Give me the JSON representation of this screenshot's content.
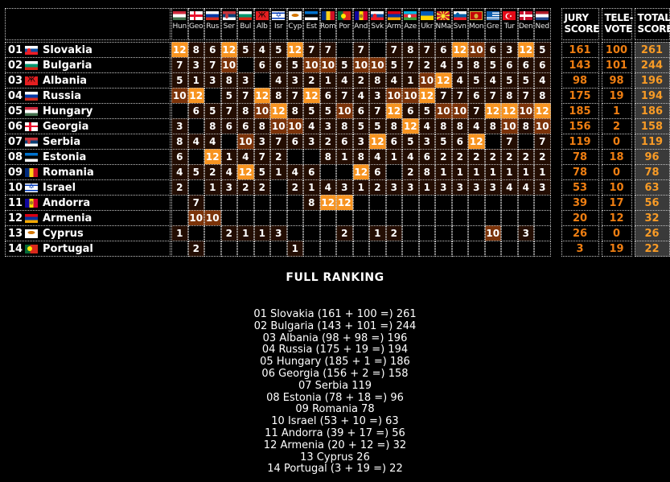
{
  "chart_data": {
    "type": "table",
    "description": "Eurovision-style jury voting scoreboard",
    "voting_columns": [
      {
        "code": "Hun",
        "flag": "hungary"
      },
      {
        "code": "Geo",
        "flag": "georgia"
      },
      {
        "code": "Rus",
        "flag": "russia"
      },
      {
        "code": "Ser",
        "flag": "serbia"
      },
      {
        "code": "Bul",
        "flag": "bulgaria"
      },
      {
        "code": "Alb",
        "flag": "albania"
      },
      {
        "code": "Isr",
        "flag": "israel"
      },
      {
        "code": "Cyp",
        "flag": "cyprus"
      },
      {
        "code": "Est",
        "flag": "estonia"
      },
      {
        "code": "Rom",
        "flag": "romania"
      },
      {
        "code": "Por",
        "flag": "portugal"
      },
      {
        "code": "And",
        "flag": "andorra"
      },
      {
        "code": "Svk",
        "flag": "slovakia"
      },
      {
        "code": "Arm",
        "flag": "armenia"
      },
      {
        "code": "Aze",
        "flag": "azerbaijan"
      },
      {
        "code": "Ukr",
        "flag": "ukraine"
      },
      {
        "code": "NMa",
        "flag": "northmacedonia"
      },
      {
        "code": "Svn",
        "flag": "slovenia"
      },
      {
        "code": "Mon",
        "flag": "montenegro"
      },
      {
        "code": "Gre",
        "flag": "greece"
      },
      {
        "code": "Tur",
        "flag": "turkey"
      },
      {
        "code": "Den",
        "flag": "denmark"
      },
      {
        "code": "Ned",
        "flag": "netherlands"
      }
    ],
    "rows": [
      {
        "pos": "01",
        "country": "Slovakia",
        "flag": "slovakia",
        "votes": [
          12,
          8,
          6,
          12,
          5,
          4,
          5,
          12,
          7,
          7,
          null,
          7,
          null,
          7,
          8,
          7,
          6,
          12,
          10,
          6,
          3,
          12,
          5
        ],
        "jury": 161,
        "tele": 100,
        "total": 261
      },
      {
        "pos": "02",
        "country": "Bulgaria",
        "flag": "bulgaria",
        "votes": [
          7,
          3,
          7,
          10,
          null,
          6,
          6,
          5,
          10,
          10,
          5,
          10,
          10,
          5,
          7,
          2,
          4,
          5,
          8,
          5,
          6,
          6,
          6
        ],
        "jury": 143,
        "tele": 101,
        "total": 244
      },
      {
        "pos": "03",
        "country": "Albania",
        "flag": "albania",
        "votes": [
          5,
          1,
          3,
          8,
          3,
          null,
          4,
          3,
          2,
          1,
          4,
          2,
          8,
          4,
          1,
          10,
          12,
          4,
          5,
          4,
          5,
          5,
          4
        ],
        "jury": 98,
        "tele": 98,
        "total": 196
      },
      {
        "pos": "04",
        "country": "Russia",
        "flag": "russia",
        "votes": [
          10,
          12,
          null,
          5,
          7,
          12,
          8,
          7,
          12,
          6,
          7,
          4,
          3,
          10,
          10,
          12,
          7,
          7,
          6,
          7,
          8,
          7,
          8
        ],
        "jury": 175,
        "tele": 19,
        "total": 194
      },
      {
        "pos": "05",
        "country": "Hungary",
        "flag": "hungary",
        "votes": [
          null,
          6,
          5,
          7,
          8,
          10,
          12,
          8,
          5,
          5,
          10,
          6,
          7,
          12,
          6,
          5,
          10,
          10,
          7,
          12,
          12,
          10,
          12
        ],
        "jury": 185,
        "tele": 1,
        "total": 186
      },
      {
        "pos": "06",
        "country": "Georgia",
        "flag": "georgia",
        "votes": [
          3,
          null,
          8,
          6,
          6,
          8,
          10,
          10,
          4,
          3,
          8,
          5,
          5,
          8,
          12,
          4,
          8,
          8,
          4,
          8,
          10,
          8,
          10
        ],
        "jury": 156,
        "tele": 2,
        "total": 158
      },
      {
        "pos": "07",
        "country": "Serbia",
        "flag": "serbia",
        "votes": [
          8,
          4,
          4,
          null,
          10,
          3,
          7,
          6,
          3,
          2,
          6,
          3,
          12,
          6,
          5,
          3,
          5,
          6,
          12,
          null,
          7,
          null,
          7
        ],
        "jury": 119,
        "tele": 0,
        "total": 119
      },
      {
        "pos": "08",
        "country": "Estonia",
        "flag": "estonia",
        "votes": [
          6,
          null,
          12,
          1,
          4,
          7,
          2,
          null,
          null,
          8,
          1,
          8,
          4,
          1,
          4,
          6,
          2,
          2,
          2,
          2,
          2,
          2,
          2
        ],
        "jury": 78,
        "tele": 18,
        "total": 96
      },
      {
        "pos": "09",
        "country": "Romania",
        "flag": "romania",
        "votes": [
          4,
          5,
          2,
          4,
          12,
          5,
          1,
          4,
          6,
          null,
          null,
          12,
          6,
          null,
          2,
          8,
          1,
          1,
          1,
          1,
          1,
          1,
          1
        ],
        "jury": 78,
        "tele": 0,
        "total": 78
      },
      {
        "pos": "10",
        "country": "Israel",
        "flag": "israel",
        "votes": [
          2,
          null,
          1,
          3,
          2,
          2,
          null,
          2,
          1,
          4,
          3,
          1,
          2,
          3,
          3,
          1,
          3,
          3,
          3,
          3,
          4,
          4,
          3
        ],
        "jury": 53,
        "tele": 10,
        "total": 63
      },
      {
        "pos": "11",
        "country": "Andorra",
        "flag": "andorra",
        "votes": [
          null,
          7,
          null,
          null,
          null,
          null,
          null,
          null,
          8,
          12,
          12,
          null,
          null,
          null,
          null,
          null,
          null,
          null,
          null,
          null,
          null,
          null,
          null
        ],
        "jury": 39,
        "tele": 17,
        "total": 56
      },
      {
        "pos": "12",
        "country": "Armenia",
        "flag": "armenia",
        "votes": [
          null,
          10,
          10,
          null,
          null,
          null,
          null,
          null,
          null,
          null,
          null,
          null,
          null,
          null,
          null,
          null,
          null,
          null,
          null,
          null,
          null,
          null,
          null
        ],
        "jury": 20,
        "tele": 12,
        "total": 32
      },
      {
        "pos": "13",
        "country": "Cyprus",
        "flag": "cyprus",
        "votes": [
          1,
          null,
          null,
          2,
          1,
          1,
          3,
          null,
          null,
          null,
          2,
          null,
          1,
          2,
          null,
          null,
          null,
          null,
          null,
          10,
          null,
          3,
          null
        ],
        "jury": 26,
        "tele": 0,
        "total": 26
      },
      {
        "pos": "14",
        "country": "Portugal",
        "flag": "portugal",
        "votes": [
          null,
          2,
          null,
          null,
          null,
          null,
          null,
          1,
          null,
          null,
          null,
          null,
          null,
          null,
          null,
          null,
          null,
          null,
          null,
          null,
          null,
          null,
          null
        ],
        "jury": 3,
        "tele": 19,
        "total": 22
      }
    ]
  },
  "score_headers": {
    "jury_line1": "JURY",
    "jury_line2": "SCORE",
    "tele_line1": "TELE-",
    "tele_line2": "VOTE",
    "total_line1": "TOTAL",
    "total_line2": "SCORE"
  },
  "ranking": {
    "title": "FULL RANKING",
    "lines": [
      "01 Slovakia (161 + 100 =) 261",
      "02 Bulgaria (143 + 101 =) 244",
      "03 Albania (98 + 98 =) 196",
      "04 Russia (175 + 19 =) 194",
      "05 Hungary (185 + 1 =) 186",
      "06 Georgia (156 + 2 =) 158",
      "07 Serbia 119",
      "08 Estonia (78 + 18 =) 96",
      "09 Romania 78",
      "10 Israel (53 + 10 =) 63",
      "11 Andorra (39 + 17 =) 56",
      "12 Armenia (20 + 12 =) 32",
      "13 Cyprus 26",
      "14 Portugal (3 + 19 =) 22"
    ]
  },
  "colors": {
    "background": "#000000",
    "points12_cell": "#f79421",
    "points10_cell": "#7b3309",
    "points_cell": "#230d02",
    "cell_border": "#c4c4c4",
    "score_text": "#ee7e12",
    "total_text": "#f89b26",
    "total_cell_bg": "#3a3a3a",
    "text": "#ffffff"
  },
  "flags": {
    "hungary": {
      "t": "h",
      "s": [
        "#cd2a3e",
        "#ffffff",
        "#436f4d"
      ]
    },
    "georgia": {
      "t": "cross",
      "bg": "#ffffff",
      "c": "#e8112d"
    },
    "russia": {
      "t": "h",
      "s": [
        "#ffffff",
        "#0039a6",
        "#d52b1e"
      ]
    },
    "serbia": {
      "t": "h",
      "s": [
        "#c6363c",
        "#0c4076",
        "#ffffff"
      ],
      "o": [
        {
          "k": "disc",
          "c": "#c6363c",
          "x": "34%",
          "y": "50%",
          "w": 4,
          "h": 6
        }
      ]
    },
    "bulgaria": {
      "t": "h",
      "s": [
        "#ffffff",
        "#00966e",
        "#d62612"
      ]
    },
    "albania": {
      "t": "solid",
      "bg": "#e41e20",
      "o": [
        {
          "k": "ch",
          "c": "#000000",
          "ch": "Ж"
        }
      ]
    },
    "israel": {
      "t": "h",
      "s": [
        "#ffffff",
        "#0038b8",
        "#ffffff",
        "#0038b8",
        "#ffffff"
      ],
      "f": [
        0.12,
        0.14,
        0.48,
        0.14,
        0.12
      ],
      "o": [
        {
          "k": "ch",
          "c": "#0038b8",
          "ch": "✡"
        }
      ]
    },
    "cyprus": {
      "t": "solid",
      "bg": "#ffffff",
      "o": [
        {
          "k": "disc",
          "c": "#d47600",
          "x": "50%",
          "y": "42%",
          "w": 9,
          "h": 4
        }
      ]
    },
    "estonia": {
      "t": "h",
      "s": [
        "#0072ce",
        "#000000",
        "#ffffff"
      ]
    },
    "romania": {
      "t": "v",
      "s": [
        "#002b7f",
        "#fcd116",
        "#ce1126"
      ]
    },
    "portugal": {
      "t": "v",
      "s": [
        "#046a38",
        "#da291c"
      ],
      "f": [
        0.4,
        0.6
      ],
      "o": [
        {
          "k": "disc",
          "c": "#ffe900",
          "x": "40%",
          "y": "50%",
          "w": 6,
          "h": 6
        }
      ]
    },
    "andorra": {
      "t": "v",
      "s": [
        "#10069f",
        "#fedd00",
        "#d50032"
      ],
      "o": [
        {
          "k": "disc",
          "c": "#9f7b22",
          "x": "50%",
          "y": "50%",
          "w": 4,
          "h": 5
        }
      ]
    },
    "slovakia": {
      "t": "h",
      "s": [
        "#ffffff",
        "#0b4ea2",
        "#ee1c25"
      ],
      "o": [
        {
          "k": "disc",
          "c": "#ee1c25",
          "x": "32%",
          "y": "55%",
          "w": 5,
          "h": 6
        }
      ]
    },
    "armenia": {
      "t": "h",
      "s": [
        "#d90012",
        "#0033a0",
        "#f2a800"
      ]
    },
    "azerbaijan": {
      "t": "h",
      "s": [
        "#00b9e4",
        "#ed2939",
        "#3f9c35"
      ],
      "o": [
        {
          "k": "disc",
          "c": "#ffffff",
          "x": "45%",
          "y": "50%",
          "w": 4,
          "h": 4
        }
      ]
    },
    "ukraine": {
      "t": "h",
      "s": [
        "#005bbb",
        "#ffd500"
      ]
    },
    "northmacedonia": {
      "t": "rays",
      "bg": "#ce2028",
      "c": "#f8e92e",
      "o": [
        {
          "k": "disc",
          "c": "#f8e92e",
          "x": "50%",
          "y": "50%",
          "w": 5,
          "h": 5
        }
      ]
    },
    "slovenia": {
      "t": "h",
      "s": [
        "#ffffff",
        "#005da4",
        "#ed1c24"
      ],
      "o": [
        {
          "k": "disc",
          "c": "#005da4",
          "x": "30%",
          "y": "38%",
          "w": 4,
          "h": 5
        }
      ]
    },
    "montenegro": {
      "t": "solid",
      "bg": "#c40308",
      "o": [
        {
          "k": "frame",
          "c": "#d3ae3b"
        },
        {
          "k": "disc",
          "c": "#d3ae3b",
          "x": "50%",
          "y": "50%",
          "w": 5,
          "h": 6
        }
      ]
    },
    "greece": {
      "t": "greece",
      "c1": "#0d5eaf",
      "c2": "#ffffff"
    },
    "turkey": {
      "t": "solid",
      "bg": "#e30a17",
      "o": [
        {
          "k": "disc",
          "c": "#ffffff",
          "x": "42%",
          "y": "50%",
          "w": 7,
          "h": 7
        },
        {
          "k": "disc",
          "c": "#e30a17",
          "x": "50%",
          "y": "50%",
          "w": 6,
          "h": 6
        },
        {
          "k": "disc",
          "c": "#ffffff",
          "x": "64%",
          "y": "50%",
          "w": 2,
          "h": 2
        }
      ]
    },
    "denmark": {
      "t": "cross",
      "bg": "#c8102e",
      "c": "#ffffff"
    },
    "netherlands": {
      "t": "h",
      "s": [
        "#ae1c28",
        "#ffffff",
        "#21468b"
      ]
    }
  }
}
